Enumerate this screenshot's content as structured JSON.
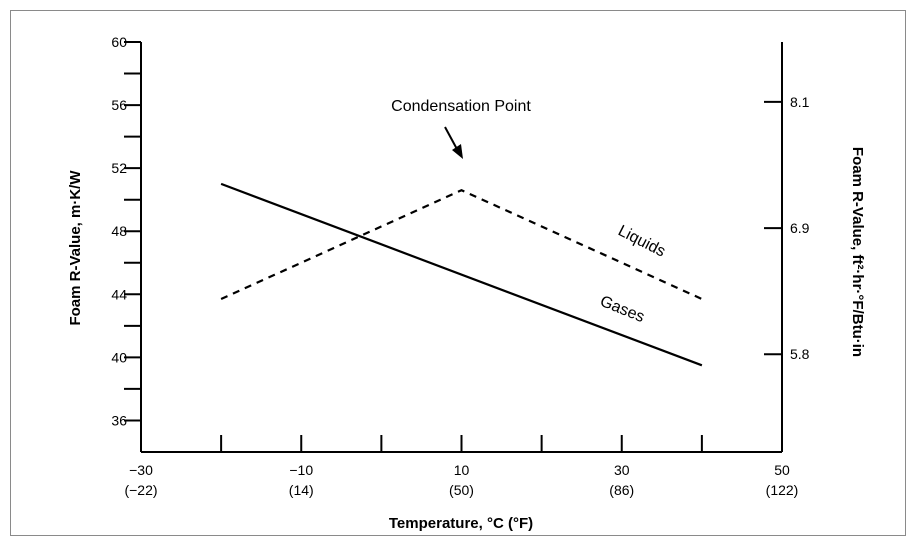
{
  "chart_data": {
    "type": "line",
    "xlabel": "Temperature, °C (°F)",
    "ylabel": "Foam R-Value, m·K/W",
    "y2label": "Foam R-Value, ft²·hr·°F/Btu·in",
    "x_range": [
      -30,
      50
    ],
    "ylim": [
      34,
      60
    ],
    "x_major_ticks": [
      {
        "value": -30,
        "celsius": "−30",
        "fahrenheit": "(−22)"
      },
      {
        "value": -10,
        "celsius": "−10",
        "fahrenheit": "(14)"
      },
      {
        "value": 10,
        "celsius": "10",
        "fahrenheit": "(50)"
      },
      {
        "value": 30,
        "celsius": "30",
        "fahrenheit": "(86)"
      },
      {
        "value": 50,
        "celsius": "50",
        "fahrenheit": "(122)"
      }
    ],
    "x_minor_ticks": [
      -20,
      0,
      20,
      40
    ],
    "y_tick_labels": [
      {
        "value": 60,
        "label": "60"
      },
      {
        "value": 56,
        "label": "56"
      },
      {
        "value": 52,
        "label": "52"
      },
      {
        "value": 48,
        "label": "48"
      },
      {
        "value": 44,
        "label": "44"
      },
      {
        "value": 40,
        "label": "40"
      },
      {
        "value": 36,
        "label": "36"
      }
    ],
    "y_ticks": [
      60,
      58,
      56,
      54,
      52,
      50,
      48,
      46,
      44,
      42,
      40,
      38,
      36
    ],
    "y2_ticks": [
      {
        "value": 56.2,
        "label": "8.1"
      },
      {
        "value": 48.2,
        "label": "6.9"
      },
      {
        "value": 40.2,
        "label": "5.8"
      }
    ],
    "series": [
      {
        "name": "Gases",
        "style": "solid",
        "x": [
          -20,
          40
        ],
        "y": [
          51.0,
          39.5
        ]
      },
      {
        "name": "Liquids",
        "style": "dashed",
        "x": [
          -20,
          10,
          40
        ],
        "y": [
          43.7,
          50.6,
          43.7
        ]
      }
    ],
    "annotations": [
      {
        "text": "Condensation Point",
        "x": 10,
        "y": 50.6
      }
    ],
    "grid": false,
    "legend": "none",
    "colors": {
      "line": "#000000",
      "frame": "#8a8a8a"
    }
  }
}
